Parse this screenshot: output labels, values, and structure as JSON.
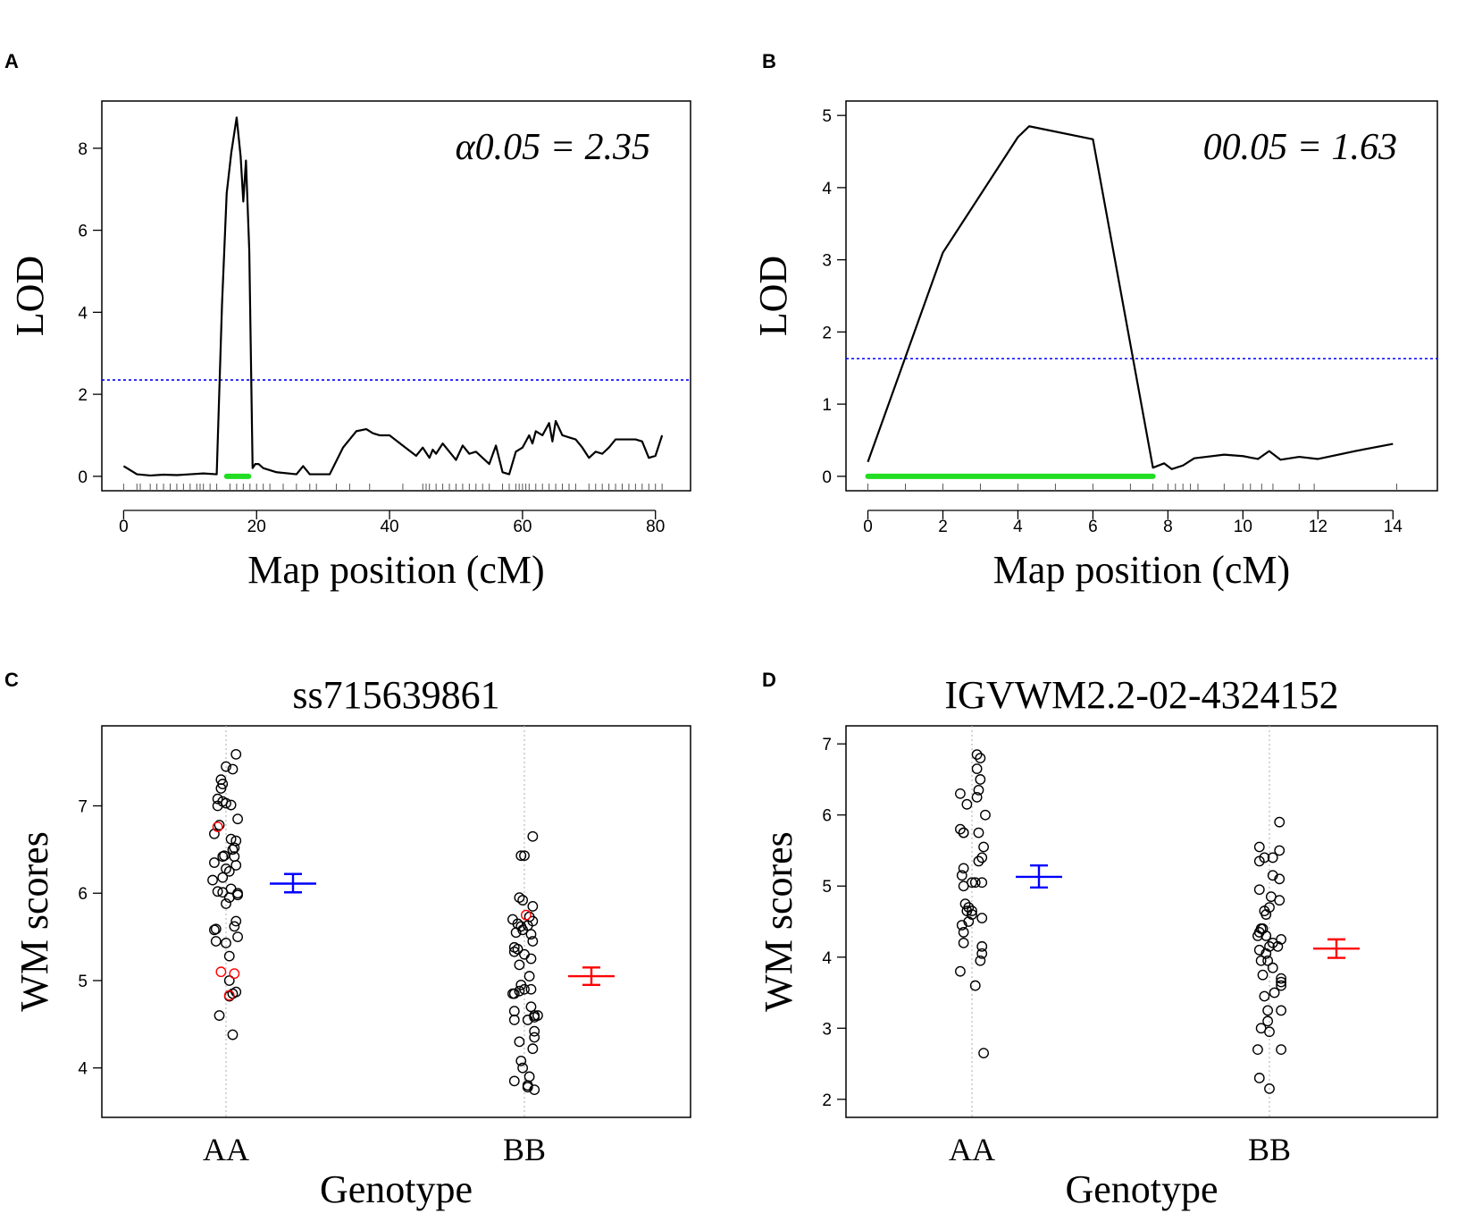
{
  "chart_data": [
    {
      "panel": "A",
      "type": "line",
      "title": "",
      "xlabel": "Map position (cM)",
      "ylabel": "LOD",
      "xlim": [
        0,
        82
      ],
      "ylim": [
        0,
        8.8
      ],
      "xticks": [
        0,
        20,
        40,
        60,
        80
      ],
      "yticks": [
        0,
        2,
        4,
        6,
        8
      ],
      "threshold": 2.35,
      "threshold_label": "α0.05 = 2.35",
      "ci_interval": [
        15.5,
        18.8
      ],
      "series": [
        {
          "name": "LOD profile",
          "x": [
            0,
            2,
            4,
            6,
            8,
            10,
            12,
            14,
            14.8,
            15.5,
            16.2,
            17.0,
            17.6,
            18.0,
            18.4,
            18.9,
            19.4,
            19.8,
            20.3,
            21,
            23,
            26,
            27,
            28,
            31,
            33,
            35,
            36.5,
            37.5,
            38.5,
            40,
            42,
            44,
            45,
            46,
            46.5,
            47,
            48,
            50,
            51,
            52,
            53,
            54,
            55,
            56,
            57,
            58,
            59,
            60,
            61,
            61.5,
            62,
            63,
            64,
            64.5,
            65,
            66,
            67,
            68,
            69,
            70,
            71,
            72,
            73,
            74,
            75,
            76,
            77,
            78,
            79,
            80,
            81
          ],
          "values": [
            0.25,
            0.05,
            0.02,
            0.04,
            0.03,
            0.05,
            0.07,
            0.05,
            4.2,
            6.9,
            7.9,
            8.75,
            7.8,
            6.7,
            7.7,
            5.5,
            0.2,
            0.3,
            0.3,
            0.2,
            0.1,
            0.05,
            0.25,
            0.05,
            0.05,
            0.7,
            1.1,
            1.15,
            1.05,
            1.0,
            1.0,
            0.75,
            0.5,
            0.7,
            0.45,
            0.65,
            0.55,
            0.8,
            0.4,
            0.75,
            0.55,
            0.6,
            0.45,
            0.3,
            0.75,
            0.1,
            0.05,
            0.6,
            0.7,
            1.0,
            0.8,
            1.1,
            1.0,
            1.3,
            0.85,
            1.35,
            1.0,
            0.95,
            0.9,
            0.7,
            0.45,
            0.6,
            0.55,
            0.7,
            0.9,
            0.9,
            0.9,
            0.9,
            0.85,
            0.45,
            0.5,
            1.0
          ]
        }
      ],
      "markers": [
        0,
        2,
        2.5,
        4,
        5,
        6,
        7,
        8,
        9,
        10,
        11,
        11.5,
        12,
        13,
        14,
        16,
        17,
        18,
        19,
        20,
        21,
        22,
        24,
        26,
        28,
        29,
        32,
        34,
        37,
        42,
        45,
        45.5,
        46,
        47,
        48,
        49,
        50,
        51,
        52,
        53,
        54,
        55,
        57,
        58,
        59,
        59.5,
        60,
        60.5,
        61,
        62,
        63,
        64,
        65,
        66,
        67,
        68,
        70,
        71,
        72,
        73,
        74,
        75,
        76,
        77,
        78,
        79,
        80,
        81
      ]
    },
    {
      "panel": "B",
      "type": "line",
      "title": "",
      "xlabel": "Map position (cM)",
      "ylabel": "LOD",
      "xlim": [
        0,
        14.6
      ],
      "ylim": [
        0,
        5
      ],
      "xticks": [
        0,
        2,
        4,
        6,
        8,
        10,
        12,
        14
      ],
      "yticks": [
        0,
        1,
        2,
        3,
        4,
        5
      ],
      "threshold": 1.63,
      "threshold_label": "00.05 = 1.63",
      "ci_interval": [
        0,
        7.6
      ],
      "series": [
        {
          "name": "LOD profile",
          "x": [
            0,
            2,
            4,
            4.3,
            6,
            7.6,
            7.9,
            8.1,
            8.4,
            8.7,
            9.5,
            10.0,
            10.4,
            10.7,
            11.0,
            11.5,
            12,
            13,
            14
          ],
          "values": [
            0.2,
            3.1,
            4.7,
            4.85,
            4.67,
            0.12,
            0.18,
            0.1,
            0.15,
            0.25,
            0.3,
            0.28,
            0.24,
            0.35,
            0.23,
            0.27,
            0.24,
            0.35,
            0.45
          ]
        }
      ],
      "markers": [
        0,
        1,
        2,
        3,
        4,
        5,
        6,
        7,
        7.6,
        8,
        8.2,
        8.4,
        8.6,
        8.8,
        9.5,
        10,
        10.2,
        10.5,
        10.8,
        11.5,
        11.9,
        14.1
      ]
    },
    {
      "panel": "C",
      "type": "scatter",
      "title": "ss715639861",
      "xlabel": "Genotype",
      "ylabel": "WM scores",
      "categories": [
        "AA",
        "BB"
      ],
      "ylim": [
        3.6,
        7.75
      ],
      "yticks": [
        4,
        5,
        6,
        7
      ],
      "groups": [
        {
          "category": "AA",
          "mean": 6.11,
          "ci": [
            6.01,
            6.22
          ],
          "color": "#0000ff",
          "points": [
            7.59,
            7.45,
            7.42,
            7.3,
            7.25,
            7.2,
            7.08,
            7.05,
            7.03,
            7.01,
            7.0,
            6.85,
            6.78,
            6.68,
            6.62,
            6.6,
            6.52,
            6.5,
            6.43,
            6.42,
            6.42,
            6.35,
            6.32,
            6.28,
            6.25,
            6.18,
            6.15,
            6.05,
            6.02,
            6.01,
            6.0,
            5.98,
            5.95,
            5.88,
            5.68,
            5.62,
            5.59,
            5.58,
            5.5,
            5.45,
            5.43,
            5.28,
            5.0,
            4.87,
            4.85,
            4.82,
            4.6,
            4.38
          ],
          "jitter": [
            0.06,
            0.0,
            0.04,
            -0.03,
            -0.02,
            -0.03,
            -0.05,
            -0.02,
            0.0,
            0.03,
            -0.05,
            0.07,
            -0.04,
            -0.07,
            0.03,
            0.06,
            0.05,
            0.04,
            -0.01,
            -0.02,
            0.05,
            -0.07,
            0.06,
            0.0,
            0.02,
            -0.02,
            -0.08,
            0.03,
            -0.05,
            -0.02,
            0.07,
            0.07,
            0.02,
            0.0,
            0.06,
            0.05,
            -0.06,
            -0.07,
            0.07,
            -0.06,
            0.0,
            0.02,
            0.02,
            0.06,
            0.04,
            0.02,
            -0.04,
            0.04
          ],
          "red_points": [
            6.76,
            5.1,
            5.08,
            4.83
          ],
          "red_jitter": [
            -0.05,
            -0.03,
            0.05,
            0.02
          ]
        },
        {
          "category": "BB",
          "mean": 5.05,
          "ci": [
            4.95,
            5.15
          ],
          "color": "#ff0000",
          "points": [
            6.65,
            6.43,
            6.43,
            5.95,
            5.92,
            5.85,
            5.73,
            5.7,
            5.68,
            5.65,
            5.63,
            5.62,
            5.58,
            5.55,
            5.53,
            5.45,
            5.38,
            5.36,
            5.33,
            5.3,
            5.25,
            5.18,
            5.05,
            4.95,
            4.9,
            4.9,
            4.88,
            4.85,
            4.85,
            4.7,
            4.65,
            4.6,
            4.6,
            4.58,
            4.55,
            4.55,
            4.42,
            4.35,
            4.3,
            4.22,
            4.08,
            4.0,
            3.9,
            3.85,
            3.8,
            3.78,
            3.75
          ],
          "jitter": [
            0.05,
            0.0,
            -0.02,
            -0.03,
            -0.01,
            0.05,
            0.03,
            -0.07,
            0.05,
            -0.04,
            0.02,
            -0.02,
            -0.01,
            -0.05,
            0.04,
            0.05,
            -0.06,
            -0.04,
            -0.06,
            0.0,
            0.04,
            -0.03,
            0.03,
            -0.02,
            0.04,
            0.0,
            -0.03,
            -0.06,
            -0.07,
            0.04,
            -0.06,
            0.06,
            0.08,
            0.06,
            0.02,
            -0.06,
            0.06,
            0.06,
            -0.03,
            0.05,
            -0.02,
            -0.01,
            0.03,
            -0.06,
            0.02,
            0.02,
            0.06
          ],
          "red_points": [
            5.75
          ],
          "red_jitter": [
            0.01
          ]
        }
      ]
    },
    {
      "panel": "D",
      "type": "scatter",
      "title": "IGVWM2.2-02-4324152",
      "xlabel": "Genotype",
      "ylabel": "WM scores",
      "categories": [
        "AA",
        "BB"
      ],
      "ylim": [
        1.95,
        7.05
      ],
      "yticks": [
        2,
        3,
        4,
        5,
        6,
        7
      ],
      "groups": [
        {
          "category": "AA",
          "mean": 5.13,
          "ci": [
            4.98,
            5.29
          ],
          "color": "#0000ff",
          "points": [
            6.85,
            6.8,
            6.65,
            6.5,
            6.35,
            6.3,
            6.25,
            6.15,
            6.0,
            5.8,
            5.75,
            5.75,
            5.75,
            5.55,
            5.4,
            5.35,
            5.25,
            5.15,
            5.05,
            5.05,
            5.05,
            5.0,
            4.75,
            4.7,
            4.65,
            4.65,
            4.6,
            4.55,
            4.5,
            4.45,
            4.35,
            4.2,
            4.15,
            4.05,
            3.95,
            3.8,
            3.6,
            2.65
          ],
          "jitter": [
            0.03,
            0.05,
            0.03,
            0.05,
            0.04,
            -0.07,
            0.03,
            -0.03,
            0.08,
            -0.07,
            -0.05,
            0.04,
            -0.05,
            0.07,
            0.06,
            0.04,
            -0.05,
            -0.06,
            0.0,
            0.06,
            0.02,
            -0.05,
            -0.04,
            -0.02,
            -0.03,
            0.0,
            0.0,
            0.06,
            -0.02,
            -0.06,
            -0.05,
            -0.05,
            0.06,
            0.06,
            0.05,
            -0.07,
            0.02,
            0.07
          ],
          "red_points": [],
          "red_jitter": []
        },
        {
          "category": "BB",
          "mean": 4.12,
          "ci": [
            3.99,
            4.25
          ],
          "color": "#ff0000",
          "points": [
            5.9,
            5.55,
            5.5,
            5.4,
            5.4,
            5.35,
            5.15,
            5.1,
            4.95,
            4.85,
            4.8,
            4.7,
            4.65,
            4.6,
            4.4,
            4.4,
            4.35,
            4.3,
            4.3,
            4.25,
            4.2,
            4.15,
            4.15,
            4.1,
            4.05,
            3.95,
            3.95,
            3.85,
            3.75,
            3.7,
            3.65,
            3.6,
            3.5,
            3.45,
            3.25,
            3.25,
            3.1,
            3.0,
            2.95,
            2.7,
            2.7,
            2.3,
            2.15
          ],
          "jitter": [
            0.06,
            -0.06,
            0.06,
            0.02,
            -0.03,
            -0.06,
            0.02,
            0.06,
            -0.06,
            0.01,
            0.06,
            0.0,
            -0.03,
            -0.02,
            -0.05,
            -0.04,
            -0.06,
            -0.02,
            -0.07,
            0.07,
            0.02,
            0.05,
            0.0,
            -0.06,
            -0.02,
            -0.05,
            -0.01,
            0.02,
            -0.04,
            0.07,
            0.07,
            0.07,
            0.03,
            -0.03,
            -0.01,
            0.07,
            -0.01,
            -0.05,
            0.0,
            -0.07,
            0.07,
            -0.06,
            0.0
          ],
          "red_points": [],
          "red_jitter": []
        }
      ]
    }
  ]
}
